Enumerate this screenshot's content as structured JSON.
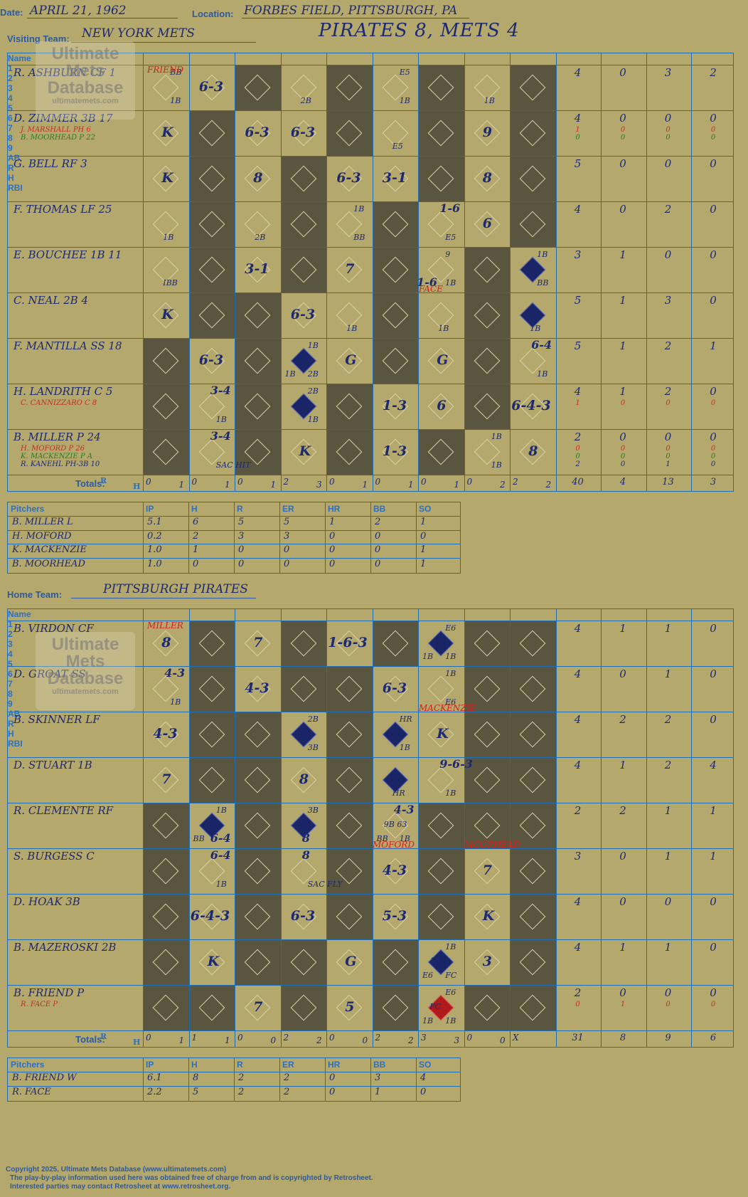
{
  "header": {
    "date_label": "Date:",
    "date": "APRIL 21, 1962",
    "location_label": "Location:",
    "location": "FORBES FIELD, PITTSBURGH, PA",
    "visiting_label": "Visiting Team:",
    "visiting_team": "NEW YORK METS",
    "home_label": "Home Team:",
    "home_team": "PITTSBURGH PIRATES",
    "result": "PIRATES 8, METS 4"
  },
  "columns": {
    "name": "Name",
    "innings": [
      "1",
      "2",
      "3",
      "4",
      "5",
      "6",
      "7",
      "8",
      "9"
    ],
    "stats": [
      "AB",
      "R",
      "H",
      "RBI"
    ],
    "totals_label": "Totals:",
    "totals_R": "R",
    "totals_H": "H"
  },
  "watermark": {
    "line1": "Ultimate",
    "line2": "Mets",
    "line3": "Database",
    "url": "ultimatemets.com"
  },
  "visitors": {
    "rows": [
      {
        "name": "R. ASHBURN CF  1",
        "subs": [],
        "stats": [
          "4",
          "0",
          "3",
          "2"
        ]
      },
      {
        "name": "D. ZIMMER 3B  17",
        "subs": [
          {
            "t": "J. MARSHALL PH  6",
            "c": "#c03020"
          },
          {
            "t": "B. MOORHEAD P  22",
            "c": "#2a7a2a"
          }
        ],
        "stats": [
          "4",
          "0",
          "0",
          "0"
        ],
        "substats": [
          [
            "1",
            "0",
            "0",
            "0"
          ],
          [
            "0",
            "0",
            "0",
            "0"
          ]
        ]
      },
      {
        "name": "G. BELL RF  3",
        "subs": [],
        "stats": [
          "5",
          "0",
          "0",
          "0"
        ]
      },
      {
        "name": "F. THOMAS LF  25",
        "subs": [],
        "stats": [
          "4",
          "0",
          "2",
          "0"
        ]
      },
      {
        "name": "E. BOUCHEE 1B  11",
        "subs": [],
        "stats": [
          "3",
          "1",
          "0",
          "0"
        ]
      },
      {
        "name": "C. NEAL 2B  4",
        "subs": [],
        "stats": [
          "5",
          "1",
          "3",
          "0"
        ]
      },
      {
        "name": "F. MANTILLA SS  18",
        "subs": [],
        "stats": [
          "5",
          "1",
          "2",
          "1"
        ]
      },
      {
        "name": "H. LANDRITH C  5",
        "subs": [
          {
            "t": "C. CANNIZZARO C  8",
            "c": "#c03020"
          }
        ],
        "stats": [
          "4",
          "1",
          "2",
          "0"
        ],
        "substats": [
          [
            "1",
            "0",
            "0",
            "0"
          ]
        ]
      },
      {
        "name": "B. MILLER P  24",
        "subs": [
          {
            "t": "H. MOFORD P  26",
            "c": "#c03020"
          },
          {
            "t": "K. MACKENZIE P  A",
            "c": "#2a7a2a"
          },
          {
            "t": "R. KANEHL PH-3B  10",
            "c": "#1d2a72"
          }
        ],
        "stats": [
          "2",
          "0",
          "0",
          "0"
        ],
        "substats": [
          [
            "0",
            "0",
            "0",
            "0"
          ],
          [
            "0",
            "0",
            "0",
            "0"
          ],
          [
            "2",
            "0",
            "1",
            "0"
          ]
        ]
      }
    ],
    "totals_innings": [
      [
        "0",
        "1"
      ],
      [
        "0",
        "1"
      ],
      [
        "0",
        "1"
      ],
      [
        "2",
        "3"
      ],
      [
        "0",
        "1"
      ],
      [
        "0",
        "1"
      ],
      [
        "0",
        "1"
      ],
      [
        "0",
        "2"
      ],
      [
        "2",
        "2"
      ]
    ],
    "totals_stats": [
      "40",
      "4",
      "13",
      "3"
    ],
    "pitchers_header": [
      "Pitchers",
      "IP",
      "H",
      "R",
      "ER",
      "HR",
      "BB",
      "SO"
    ],
    "pitchers": [
      [
        "B. MILLER  L",
        "5.1",
        "6",
        "5",
        "5",
        "1",
        "2",
        "1"
      ],
      [
        "H. MOFORD",
        "0.2",
        "2",
        "3",
        "3",
        "0",
        "0",
        "0"
      ],
      [
        "K. MACKENZIE",
        "1.0",
        "1",
        "0",
        "0",
        "0",
        "0",
        "1"
      ],
      [
        "B. MOORHEAD",
        "1.0",
        "0",
        "0",
        "0",
        "0",
        "0",
        "1"
      ]
    ]
  },
  "home": {
    "rows": [
      {
        "name": "B. VIRDON CF",
        "subs": [],
        "stats": [
          "4",
          "1",
          "1",
          "0"
        ]
      },
      {
        "name": "D. GROAT SS",
        "subs": [],
        "stats": [
          "4",
          "0",
          "1",
          "0"
        ]
      },
      {
        "name": "B. SKINNER LF",
        "subs": [],
        "stats": [
          "4",
          "2",
          "2",
          "0"
        ]
      },
      {
        "name": "D. STUART 1B",
        "subs": [],
        "stats": [
          "4",
          "1",
          "2",
          "4"
        ]
      },
      {
        "name": "R. CLEMENTE RF",
        "subs": [],
        "stats": [
          "2",
          "2",
          "1",
          "1"
        ]
      },
      {
        "name": "S. BURGESS C",
        "subs": [],
        "stats": [
          "3",
          "0",
          "1",
          "1"
        ]
      },
      {
        "name": "D. HOAK 3B",
        "subs": [],
        "stats": [
          "4",
          "0",
          "0",
          "0"
        ]
      },
      {
        "name": "B. MAZEROSKI 2B",
        "subs": [],
        "stats": [
          "4",
          "1",
          "1",
          "0"
        ]
      },
      {
        "name": "B. FRIEND P",
        "subs": [
          {
            "t": "R. FACE P",
            "c": "#c03020"
          }
        ],
        "stats": [
          "2",
          "0",
          "0",
          "0"
        ],
        "substats": [
          [
            "0",
            "1",
            "0",
            "0"
          ]
        ]
      }
    ],
    "totals_innings": [
      [
        "0",
        "1"
      ],
      [
        "1",
        "1"
      ],
      [
        "0",
        "0"
      ],
      [
        "2",
        "2"
      ],
      [
        "0",
        "0"
      ],
      [
        "2",
        "2"
      ],
      [
        "3",
        "3"
      ],
      [
        "0",
        "0"
      ],
      [
        "X",
        ""
      ]
    ],
    "totals_stats": [
      "31",
      "8",
      "9",
      "6"
    ],
    "pitchers_header": [
      "Pitchers",
      "IP",
      "H",
      "R",
      "ER",
      "HR",
      "BB",
      "SO"
    ],
    "pitchers": [
      [
        "B. FRIEND  W",
        "6.1",
        "8",
        "2",
        "2",
        "0",
        "3",
        "4"
      ],
      [
        "R. FACE",
        "2.2",
        "5",
        "2",
        "2",
        "0",
        "1",
        "0"
      ]
    ]
  },
  "visitor_plays": [
    [
      [
        "BB",
        "1B"
      ],
      [
        "6-3"
      ],
      null,
      [
        "2B"
      ],
      null,
      [
        "E5",
        "1B"
      ],
      null,
      [
        "1B"
      ],
      null
    ],
    [
      [
        "K"
      ],
      null,
      [
        "6-3"
      ],
      [
        "6-3"
      ],
      null,
      [
        "E5"
      ],
      null,
      [
        "9"
      ],
      null
    ],
    [
      [
        "K"
      ],
      null,
      [
        "8"
      ],
      null,
      [
        "6-3"
      ],
      [
        "3-1"
      ],
      null,
      [
        "8"
      ],
      null
    ],
    [
      [
        "1B"
      ],
      null,
      [
        "2B"
      ],
      null,
      [
        "1B",
        "BB"
      ],
      null,
      [
        "1-6",
        "E5"
      ],
      [
        "6"
      ],
      null
    ],
    [
      [
        "IBB"
      ],
      null,
      [
        "3-1"
      ],
      null,
      [
        "7"
      ],
      null,
      [
        "9",
        "1B",
        "1-6"
      ],
      null,
      [
        "1B",
        "BB"
      ]
    ],
    [
      [
        "K"
      ],
      null,
      null,
      [
        "6-3"
      ],
      [
        "1B"
      ],
      null,
      [
        "1B"
      ],
      null,
      [
        "1B"
      ]
    ],
    [
      null,
      [
        "6-3"
      ],
      null,
      [
        "1B",
        "2B",
        "1B"
      ],
      [
        "G"
      ],
      null,
      [
        "G"
      ],
      null,
      [
        "6-4",
        "1B"
      ]
    ],
    [
      null,
      [
        "3-4",
        "1B"
      ],
      null,
      [
        "2B",
        "1B"
      ],
      null,
      [
        "1-3"
      ],
      [
        "6"
      ],
      null,
      [
        "6-4-3"
      ]
    ],
    [
      null,
      [
        "3-4",
        "SAC HIT"
      ],
      null,
      [
        "K"
      ],
      null,
      [
        "1-3"
      ],
      null,
      [
        "1B",
        "1B"
      ],
      [
        "8"
      ]
    ]
  ],
  "home_plays": [
    [
      [
        "8"
      ],
      null,
      [
        "7"
      ],
      null,
      [
        "1-6-3"
      ],
      null,
      [
        "E6",
        "1B",
        "1B"
      ],
      null,
      null
    ],
    [
      [
        "4-3",
        "1B"
      ],
      null,
      [
        "4-3"
      ],
      null,
      null,
      [
        "6-3"
      ],
      [
        "1B",
        "E6"
      ],
      null,
      null
    ],
    [
      [
        "4-3"
      ],
      null,
      null,
      [
        "2B",
        "3B"
      ],
      null,
      [
        "HR",
        "1B"
      ],
      [
        "K"
      ],
      null,
      null
    ],
    [
      [
        "7"
      ],
      null,
      null,
      [
        "8"
      ],
      null,
      [
        "HR"
      ],
      [
        "9-6-3",
        "1B"
      ],
      null,
      null
    ],
    [
      null,
      [
        "1B",
        "6-4",
        "BB"
      ],
      null,
      [
        "3B",
        "8"
      ],
      null,
      [
        "4-3",
        "1B",
        "BB",
        "9B 63"
      ],
      null,
      null,
      null
    ],
    [
      null,
      [
        "6-4",
        "1B"
      ],
      null,
      [
        "8",
        "SAC FLY"
      ],
      null,
      [
        "4-3"
      ],
      null,
      [
        "7"
      ],
      null
    ],
    [
      null,
      [
        "6-4-3"
      ],
      null,
      [
        "6-3"
      ],
      null,
      [
        "5-3"
      ],
      null,
      [
        "K"
      ],
      null
    ],
    [
      null,
      [
        "K"
      ],
      null,
      null,
      [
        "G"
      ],
      null,
      [
        "1B",
        "FC",
        "E6",
        "1B"
      ],
      [
        "3"
      ],
      null
    ],
    [
      null,
      null,
      [
        "7"
      ],
      null,
      [
        "5"
      ],
      null,
      [
        "E6",
        "1B",
        "1B",
        "FC"
      ],
      null,
      null
    ]
  ],
  "red_notes": {
    "friend": "FRIEND",
    "face": "FACE",
    "miller": "MILLER",
    "mackenzie": "MACKENZIE",
    "moford": "MOFORD",
    "moorhead": "MOORHEAD"
  },
  "footer": {
    "line1": "Copyright 2025, Ultimate Mets Database (www.ultimatemets.com)",
    "line2": "The play-by-play information used here was obtained free of charge from and is copyrighted by Retrosheet.",
    "line3": "Interested parties may contact Retrosheet at www.retrosheet.org."
  }
}
